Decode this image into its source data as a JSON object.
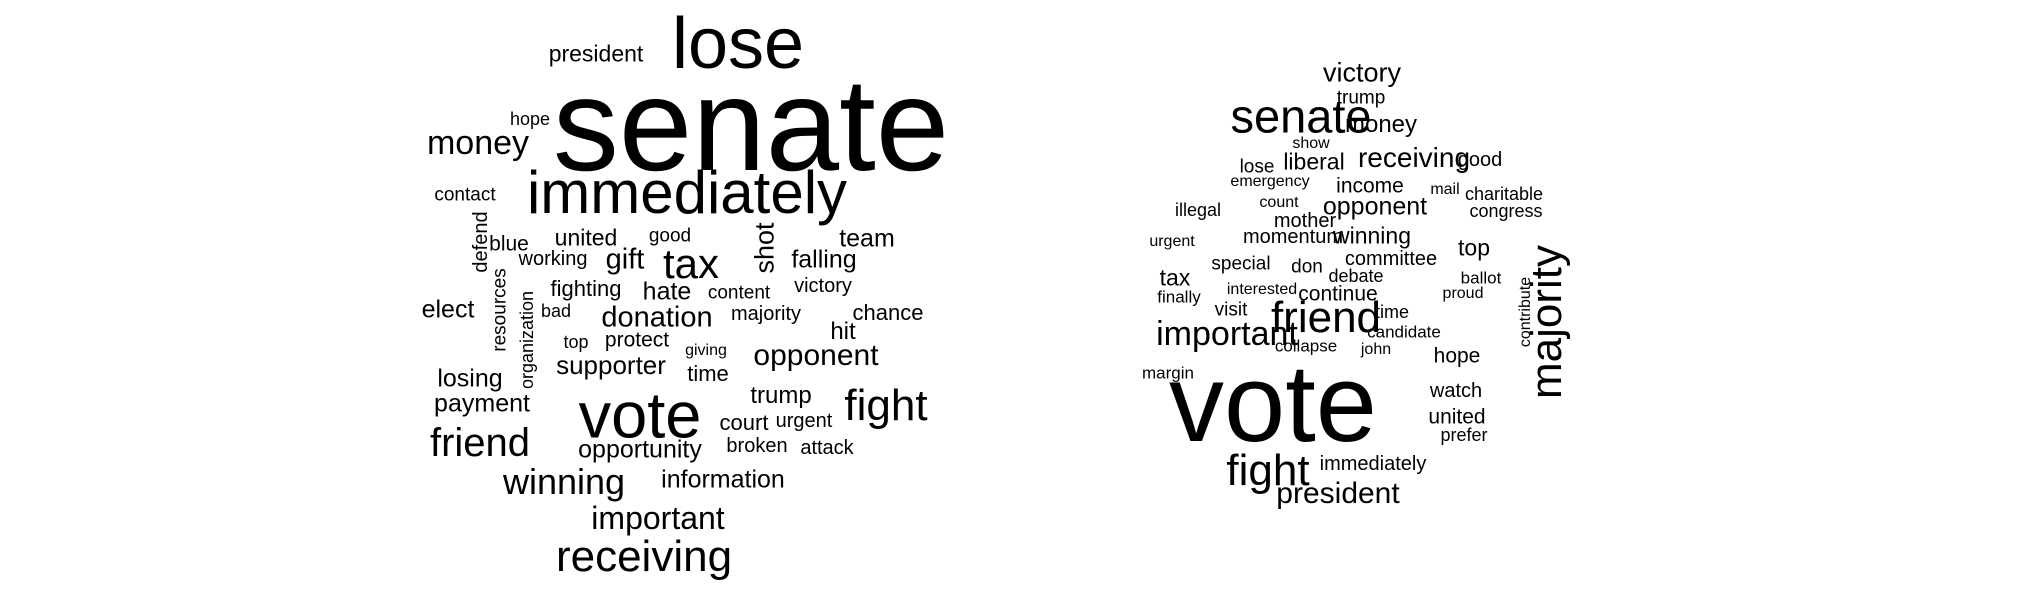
{
  "clouds": [
    {
      "words": [
        {
          "text": "senate",
          "vertical": false
        },
        {
          "text": "lose",
          "vertical": false
        },
        {
          "text": "president",
          "vertical": false
        },
        {
          "text": "hope",
          "vertical": false
        },
        {
          "text": "money",
          "vertical": false
        },
        {
          "text": "immediately",
          "vertical": false
        },
        {
          "text": "contact",
          "vertical": false
        },
        {
          "text": "defend",
          "vertical": true
        },
        {
          "text": "blue",
          "vertical": false
        },
        {
          "text": "united",
          "vertical": false
        },
        {
          "text": "good",
          "vertical": false
        },
        {
          "text": "shot",
          "vertical": true
        },
        {
          "text": "team",
          "vertical": false
        },
        {
          "text": "working",
          "vertical": false
        },
        {
          "text": "gift",
          "vertical": false
        },
        {
          "text": "tax",
          "vertical": false
        },
        {
          "text": "falling",
          "vertical": false
        },
        {
          "text": "fighting",
          "vertical": false
        },
        {
          "text": "hate",
          "vertical": false
        },
        {
          "text": "content",
          "vertical": false
        },
        {
          "text": "victory",
          "vertical": false
        },
        {
          "text": "resources",
          "vertical": true
        },
        {
          "text": "organization",
          "vertical": true
        },
        {
          "text": "elect",
          "vertical": false
        },
        {
          "text": "bad",
          "vertical": false
        },
        {
          "text": "donation",
          "vertical": false
        },
        {
          "text": "majority",
          "vertical": false
        },
        {
          "text": "chance",
          "vertical": false
        },
        {
          "text": "hit",
          "vertical": false
        },
        {
          "text": "top",
          "vertical": false
        },
        {
          "text": "protect",
          "vertical": false
        },
        {
          "text": "giving",
          "vertical": false
        },
        {
          "text": "opponent",
          "vertical": false
        },
        {
          "text": "supporter",
          "vertical": false
        },
        {
          "text": "time",
          "vertical": false
        },
        {
          "text": "losing",
          "vertical": false
        },
        {
          "text": "trump",
          "vertical": false
        },
        {
          "text": "payment",
          "vertical": false
        },
        {
          "text": "vote",
          "vertical": false
        },
        {
          "text": "fight",
          "vertical": false
        },
        {
          "text": "court",
          "vertical": false
        },
        {
          "text": "urgent",
          "vertical": false
        },
        {
          "text": "friend",
          "vertical": false
        },
        {
          "text": "opportunity",
          "vertical": false
        },
        {
          "text": "broken",
          "vertical": false
        },
        {
          "text": "attack",
          "vertical": false
        },
        {
          "text": "winning",
          "vertical": false
        },
        {
          "text": "information",
          "vertical": false
        },
        {
          "text": "important",
          "vertical": false
        },
        {
          "text": "receiving",
          "vertical": false
        }
      ]
    },
    {
      "words": [
        {
          "text": "victory",
          "vertical": false
        },
        {
          "text": "trump",
          "vertical": false
        },
        {
          "text": "senate",
          "vertical": false
        },
        {
          "text": "money",
          "vertical": false
        },
        {
          "text": "show",
          "vertical": false
        },
        {
          "text": "lose",
          "vertical": false
        },
        {
          "text": "liberal",
          "vertical": false
        },
        {
          "text": "receiving",
          "vertical": false
        },
        {
          "text": "good",
          "vertical": false
        },
        {
          "text": "emergency",
          "vertical": false
        },
        {
          "text": "income",
          "vertical": false
        },
        {
          "text": "mail",
          "vertical": false
        },
        {
          "text": "charitable",
          "vertical": false
        },
        {
          "text": "illegal",
          "vertical": false
        },
        {
          "text": "count",
          "vertical": false
        },
        {
          "text": "opponent",
          "vertical": false
        },
        {
          "text": "congress",
          "vertical": false
        },
        {
          "text": "mother",
          "vertical": false
        },
        {
          "text": "urgent",
          "vertical": false
        },
        {
          "text": "momentum",
          "vertical": false
        },
        {
          "text": "winning",
          "vertical": false
        },
        {
          "text": "top",
          "vertical": false
        },
        {
          "text": "special",
          "vertical": false
        },
        {
          "text": "don",
          "vertical": false
        },
        {
          "text": "committee",
          "vertical": false
        },
        {
          "text": "tax",
          "vertical": false
        },
        {
          "text": "debate",
          "vertical": false
        },
        {
          "text": "ballot",
          "vertical": false
        },
        {
          "text": "interested",
          "vertical": false
        },
        {
          "text": "continue",
          "vertical": false
        },
        {
          "text": "proud",
          "vertical": false
        },
        {
          "text": "contribute",
          "vertical": true
        },
        {
          "text": "majority",
          "vertical": true
        },
        {
          "text": "finally",
          "vertical": false
        },
        {
          "text": "visit",
          "vertical": false
        },
        {
          "text": "friend",
          "vertical": false
        },
        {
          "text": "time",
          "vertical": false
        },
        {
          "text": "important",
          "vertical": false
        },
        {
          "text": "candidate",
          "vertical": false
        },
        {
          "text": "collapse",
          "vertical": false
        },
        {
          "text": "john",
          "vertical": false
        },
        {
          "text": "hope",
          "vertical": false
        },
        {
          "text": "margin",
          "vertical": false
        },
        {
          "text": "vote",
          "vertical": false
        },
        {
          "text": "watch",
          "vertical": false
        },
        {
          "text": "united",
          "vertical": false
        },
        {
          "text": "prefer",
          "vertical": false
        },
        {
          "text": "fight",
          "vertical": false
        },
        {
          "text": "immediately",
          "vertical": false
        },
        {
          "text": "president",
          "vertical": false
        }
      ]
    }
  ]
}
